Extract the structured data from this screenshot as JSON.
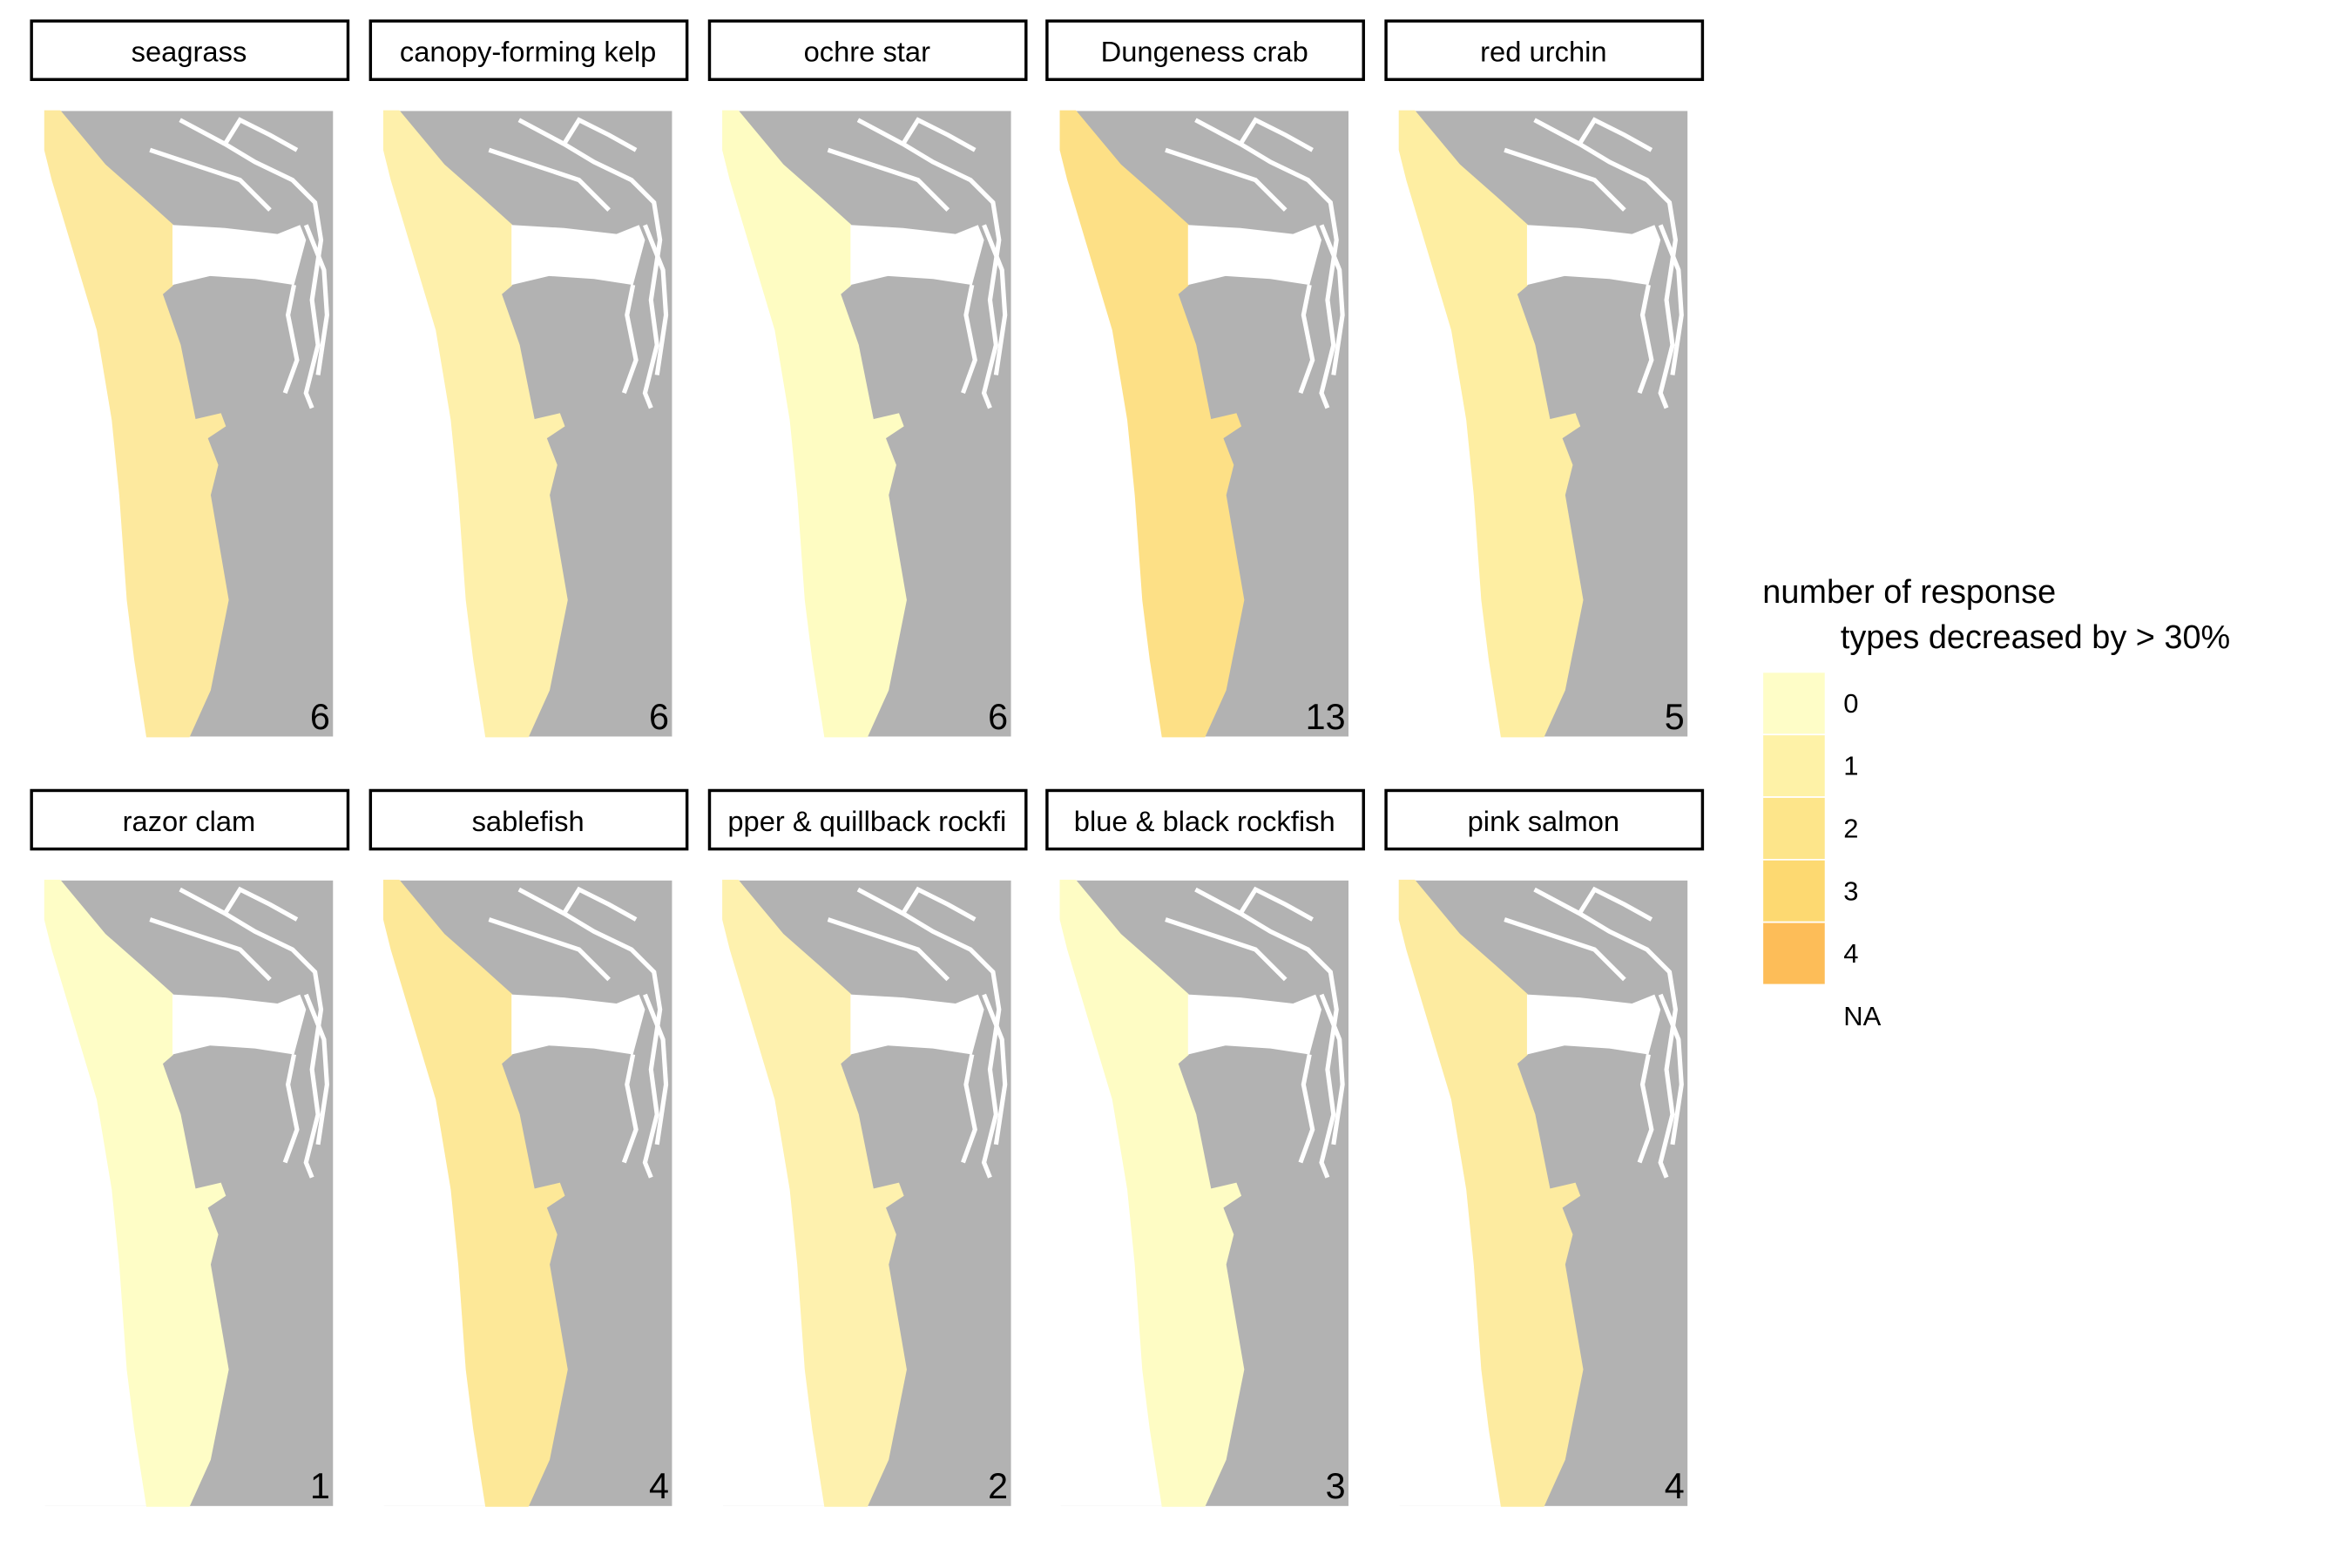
{
  "panels": [
    {
      "title": "seagrass",
      "count": 6,
      "fill": "#fde99e"
    },
    {
      "title": "canopy-forming kelp",
      "count": 6,
      "fill": "#fef0ab"
    },
    {
      "title": "ochre star",
      "count": 6,
      "fill": "#fefcc2"
    },
    {
      "title": "Dungeness crab",
      "count": 13,
      "fill": "#fde086"
    },
    {
      "title": "red urchin",
      "count": 5,
      "fill": "#feeea2"
    },
    {
      "title": "razor clam",
      "count": 1,
      "fill": "#fefdc6"
    },
    {
      "title": "sablefish",
      "count": 4,
      "fill": "#fde898"
    },
    {
      "title": "pper & quillback rockfi",
      "count": 2,
      "fill": "#fef1ae"
    },
    {
      "title": "blue & black rockfish",
      "count": 3,
      "fill": "#fefcc4"
    },
    {
      "title": "pink salmon",
      "count": 4,
      "fill": "#fdeba0"
    }
  ],
  "legend": {
    "title": [
      "number of response",
      "types decreased by > 30%"
    ],
    "items": [
      {
        "label": "0",
        "color": "#fefdc7"
      },
      {
        "label": "1",
        "color": "#fef2a7"
      },
      {
        "label": "2",
        "color": "#fde58a"
      },
      {
        "label": "3",
        "color": "#fdd971"
      },
      {
        "label": "4",
        "color": "#fdbd58"
      },
      {
        "label": "NA",
        "color": "none"
      }
    ]
  }
}
